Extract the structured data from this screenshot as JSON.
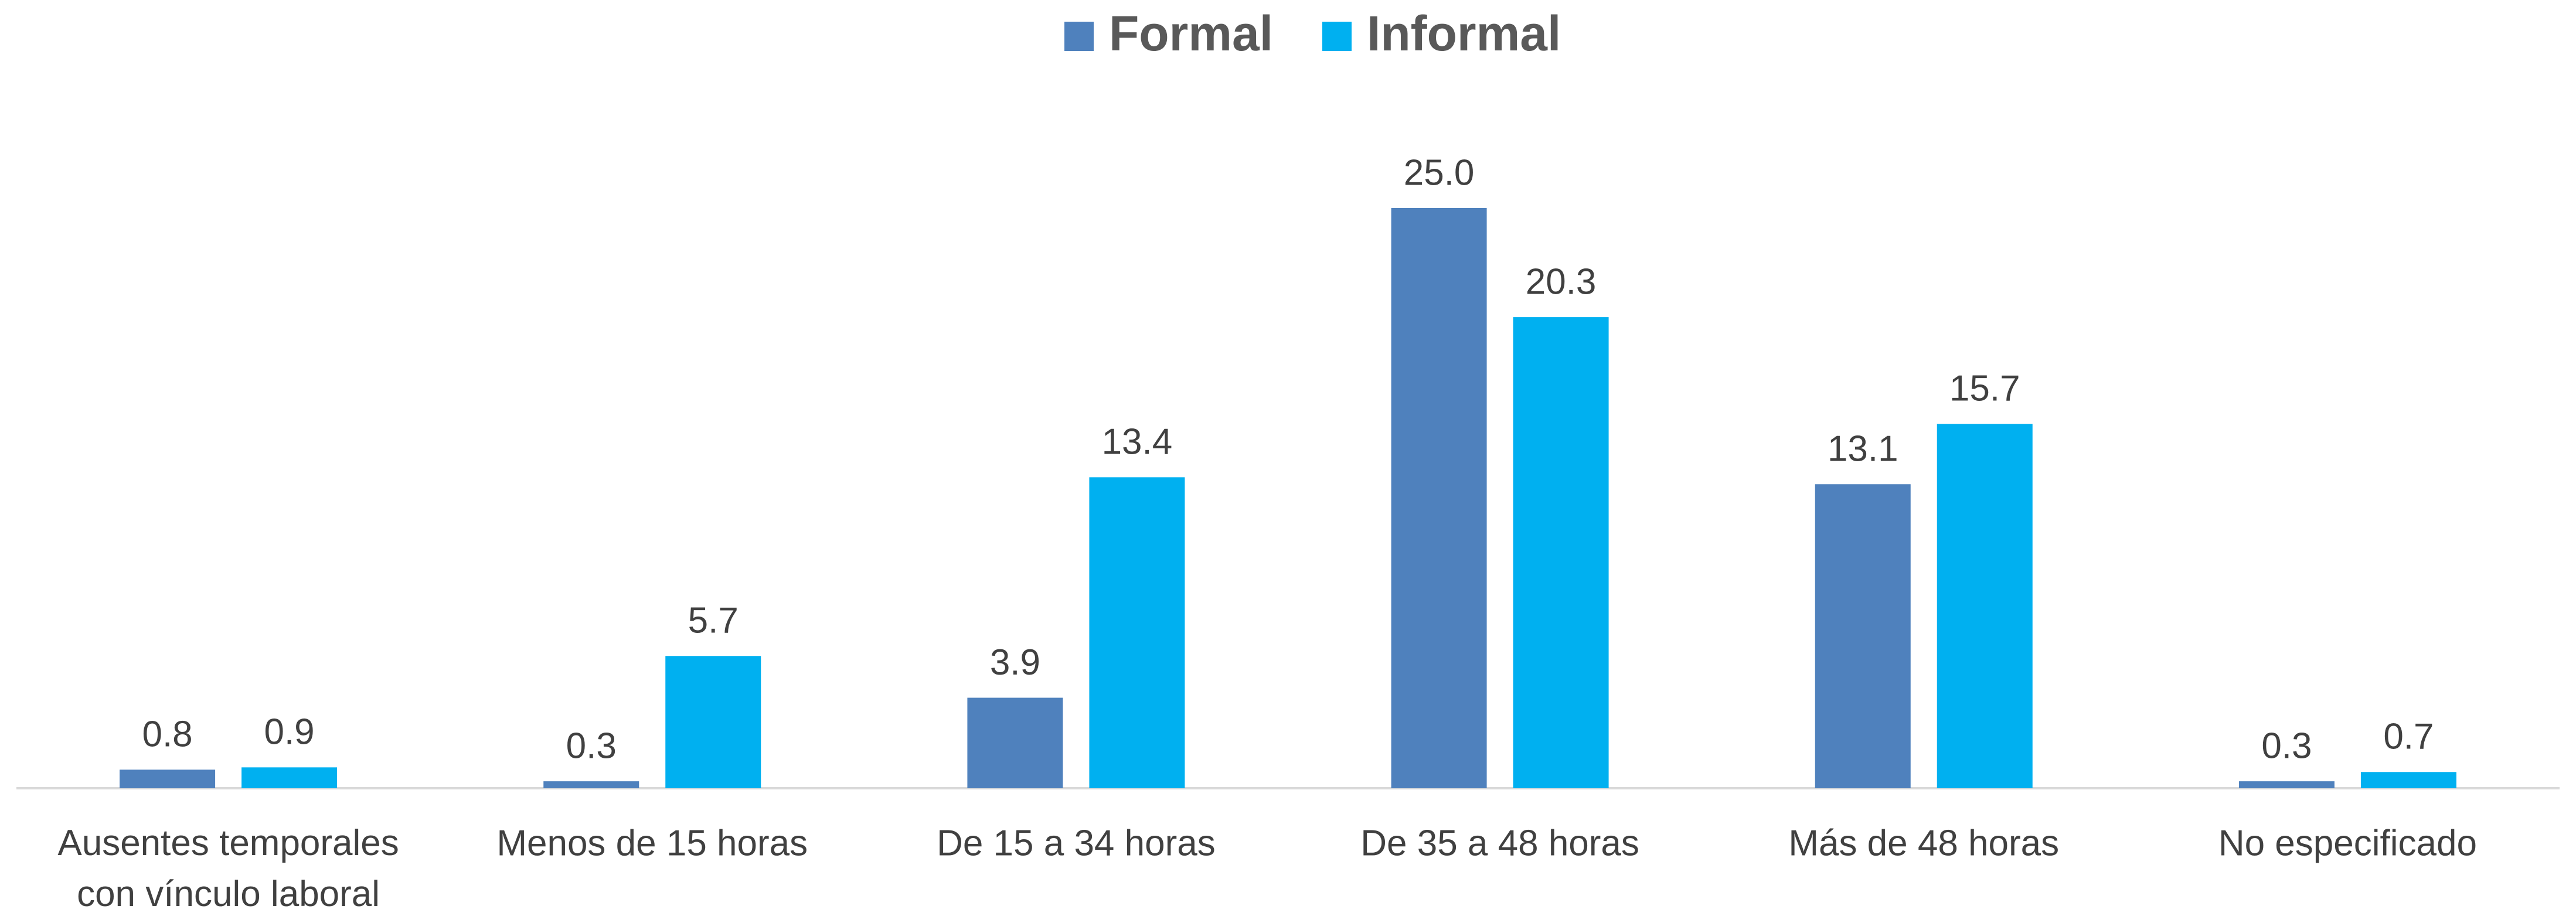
{
  "chart_data": {
    "type": "bar",
    "categories": [
      "Ausentes temporales con vínculo laboral",
      "Menos de 15 horas",
      "De 15 a 34 horas",
      "De 35 a 48 horas",
      "Más de 48 horas",
      "No especificado"
    ],
    "series": [
      {
        "name": "Formal",
        "color": "#4f81bd",
        "values": [
          0.8,
          0.3,
          3.9,
          25,
          13.1,
          0.3
        ],
        "value_labels": [
          "0.8",
          "0.3",
          "3.9",
          "25.0",
          "13.1",
          "0.3"
        ]
      },
      {
        "name": "Informal",
        "color": "#00b0f0",
        "values": [
          0.9,
          5.7,
          13.4,
          20.3,
          15.7,
          0.7
        ],
        "value_labels": [
          "0.9",
          "5.7",
          "13.4",
          "20.3",
          "15.7",
          "0.7"
        ]
      }
    ],
    "ylim": [
      0,
      30
    ],
    "legend": "top"
  }
}
